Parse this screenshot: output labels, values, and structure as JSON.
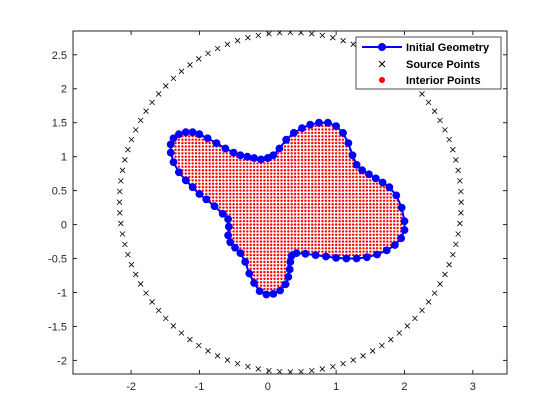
{
  "chart_data": {
    "type": "scatter",
    "title": "",
    "xlabel": "",
    "ylabel": "",
    "xlim": [
      -2.85,
      3.5
    ],
    "ylim": [
      -2.2,
      2.85
    ],
    "xticks": [
      -2,
      -1,
      0,
      1,
      2,
      3
    ],
    "yticks": [
      -2,
      -1.5,
      -1,
      -0.5,
      0,
      0.5,
      1,
      1.5,
      2,
      2.5
    ],
    "xtick_labels": [
      "-2",
      "-1",
      "0",
      "1",
      "2",
      "3"
    ],
    "ytick_labels": [
      "-2",
      "-1.5",
      "-1",
      "-0.5",
      "0",
      "0.5",
      "1",
      "1.5",
      "2",
      "2.5"
    ],
    "grid": false,
    "legend_position": "top-right",
    "series": [
      {
        "name": "Initial Geometry",
        "style": "line-with-markers",
        "color": "#0000ff",
        "x": [
          0.0,
          0.08,
          0.17,
          0.27,
          0.38,
          0.5,
          0.62,
          0.75,
          0.88,
          1.0,
          1.1,
          1.18,
          1.24,
          1.3,
          1.38,
          1.48,
          1.58,
          1.68,
          1.78,
          1.88,
          1.96,
          2.0,
          2.0,
          1.95,
          1.86,
          1.74,
          1.6,
          1.45,
          1.3,
          1.15,
          1.0,
          0.85,
          0.7,
          0.55,
          0.42,
          0.35,
          0.33,
          0.32,
          0.3,
          0.26,
          0.18,
          0.08,
          -0.02,
          -0.12,
          -0.2,
          -0.27,
          -0.33,
          -0.4,
          -0.48,
          -0.55,
          -0.58,
          -0.57,
          -0.58,
          -0.66,
          -0.78,
          -0.9,
          -1.0,
          -1.1,
          -1.2,
          -1.3,
          -1.38,
          -1.42,
          -1.42,
          -1.38,
          -1.3,
          -1.2,
          -1.1,
          -1.0,
          -0.88,
          -0.75,
          -0.62,
          -0.5,
          -0.4,
          -0.3,
          -0.2,
          -0.1,
          0.0
        ],
        "y": [
          0.98,
          1.02,
          1.12,
          1.25,
          1.35,
          1.42,
          1.47,
          1.5,
          1.5,
          1.45,
          1.35,
          1.2,
          1.02,
          0.88,
          0.8,
          0.74,
          0.68,
          0.62,
          0.55,
          0.43,
          0.25,
          0.05,
          -0.08,
          -0.2,
          -0.3,
          -0.38,
          -0.44,
          -0.48,
          -0.5,
          -0.5,
          -0.49,
          -0.47,
          -0.45,
          -0.43,
          -0.42,
          -0.46,
          -0.55,
          -0.66,
          -0.77,
          -0.88,
          -0.97,
          -1.02,
          -1.03,
          -0.98,
          -0.86,
          -0.72,
          -0.55,
          -0.42,
          -0.34,
          -0.26,
          -0.16,
          -0.03,
          0.08,
          0.16,
          0.27,
          0.37,
          0.45,
          0.55,
          0.65,
          0.77,
          0.92,
          1.06,
          1.18,
          1.27,
          1.33,
          1.36,
          1.36,
          1.33,
          1.27,
          1.2,
          1.12,
          1.06,
          1.02,
          1.0,
          0.98,
          0.96,
          0.98
        ]
      },
      {
        "name": "Source Points",
        "style": "x-markers",
        "color": "#000000",
        "center": [
          0.33,
          0.33
        ],
        "radius": 2.5,
        "count": 100
      },
      {
        "name": "Interior Points",
        "style": "filled-dots",
        "color": "#ff0000",
        "spacing": 0.05
      }
    ]
  }
}
